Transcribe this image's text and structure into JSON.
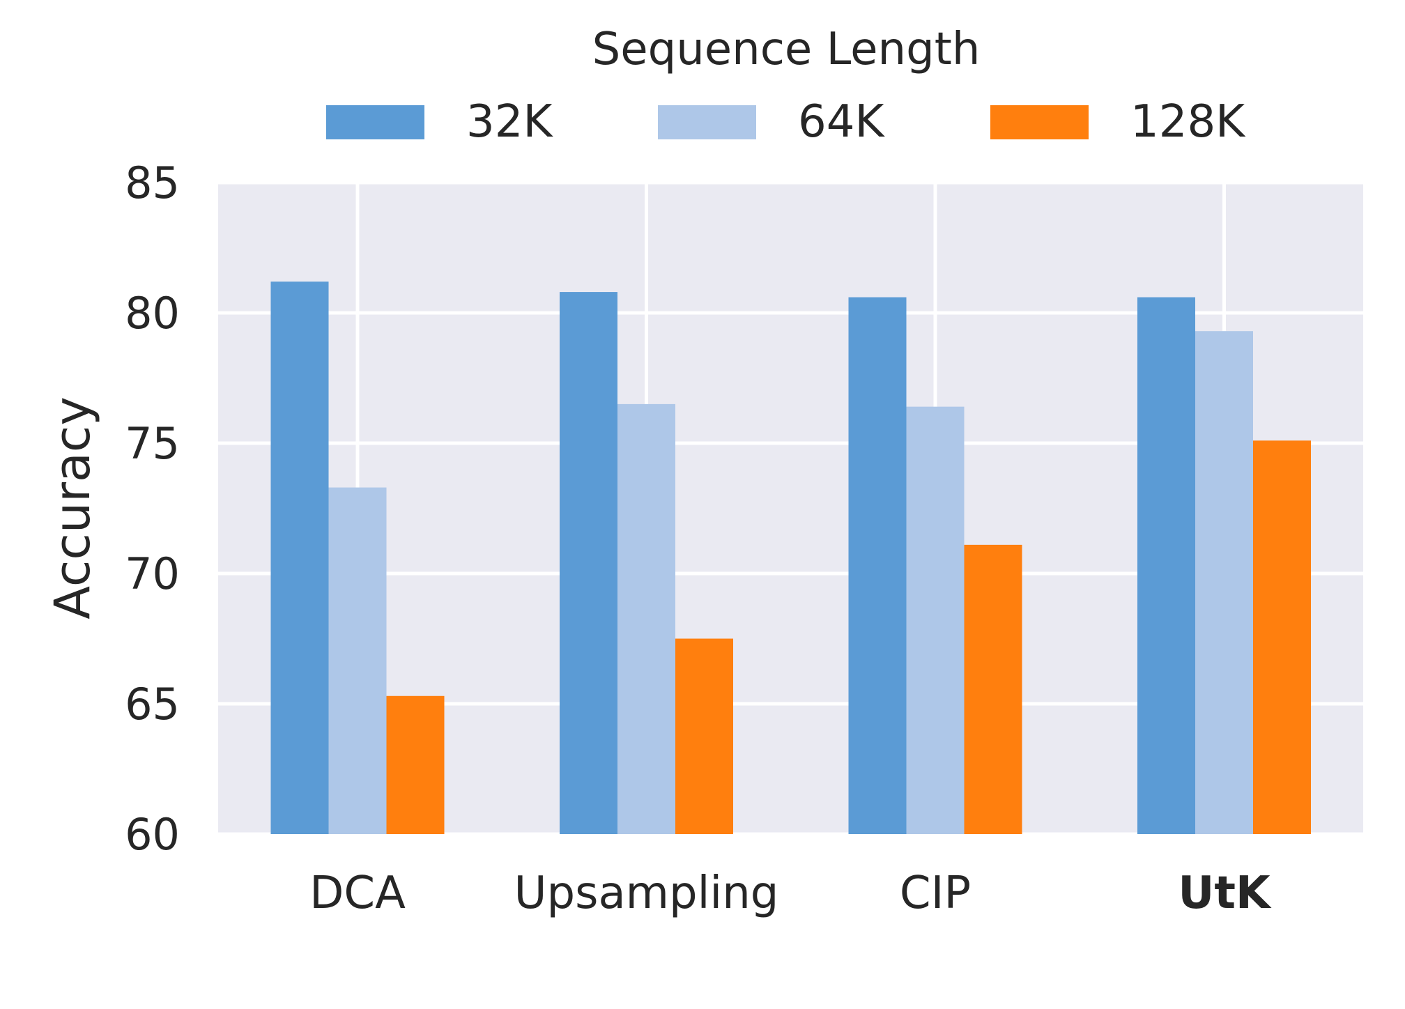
{
  "chart_data": {
    "type": "bar",
    "title": "",
    "xlabel": "",
    "ylabel": "Accuracy",
    "ylim": [
      60,
      85
    ],
    "yticks": [
      60,
      65,
      70,
      75,
      80,
      85
    ],
    "grid": true,
    "legend": {
      "title": "Sequence Length",
      "placement": "top-center",
      "columns": 3
    },
    "categories": [
      "DCA",
      "Upsampling",
      "CIP",
      "UtK"
    ],
    "bold_categories": [
      "UtK"
    ],
    "series": [
      {
        "name": "32K",
        "color": "#5b9bd5",
        "values": [
          81.2,
          80.8,
          80.6,
          80.6
        ]
      },
      {
        "name": "64K",
        "color": "#aec7e8",
        "values": [
          73.3,
          76.5,
          76.4,
          79.3
        ]
      },
      {
        "name": "128K",
        "color": "#ff7f0e",
        "values": [
          65.3,
          67.5,
          71.1,
          75.1
        ]
      }
    ],
    "colors": {
      "plot_background": "#eaeaf2",
      "grid": "#ffffff",
      "text": "#262626"
    }
  }
}
